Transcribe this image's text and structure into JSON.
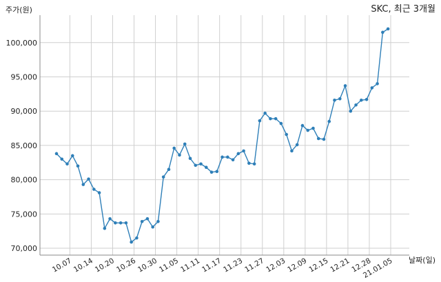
{
  "chart_data": {
    "type": "line",
    "title": "SKC, 최근 3개월",
    "xlabel": "날짜(일)",
    "ylabel": "주가(원)",
    "ylim": [
      69000,
      104000
    ],
    "y_ticks": [
      70000,
      75000,
      80000,
      85000,
      90000,
      95000,
      100000
    ],
    "y_tick_labels": [
      "70,000",
      "75,000",
      "80,000",
      "85,000",
      "90,000",
      "95,000",
      "100,000"
    ],
    "x_ticks": [
      {
        "label": "10.07",
        "index": 2.5
      },
      {
        "label": "10.14",
        "index": 6.5
      },
      {
        "label": "10.20",
        "index": 10.5
      },
      {
        "label": "10.26",
        "index": 14.5
      },
      {
        "label": "10.30",
        "index": 18.5
      },
      {
        "label": "11.05",
        "index": 22.5
      },
      {
        "label": "11.11",
        "index": 26.5
      },
      {
        "label": "11.17",
        "index": 30.5
      },
      {
        "label": "11.23",
        "index": 34.5
      },
      {
        "label": "11.27",
        "index": 38.5
      },
      {
        "label": "12.03",
        "index": 42.5
      },
      {
        "label": "12.09",
        "index": 46.5
      },
      {
        "label": "12.15",
        "index": 50.5
      },
      {
        "label": "12.21",
        "index": 54.5
      },
      {
        "label": "12.28",
        "index": 58.5
      },
      {
        "label": "21.01.05",
        "index": 62.5
      }
    ],
    "grid": true,
    "line_color": "#2e7fb8",
    "series": [
      {
        "values": [
          83800,
          83000,
          82300,
          83500,
          82000,
          79300,
          80100,
          78600,
          78100,
          72900,
          74300,
          73700,
          73700,
          73700,
          70900,
          71500,
          73900,
          74300,
          73100,
          73900,
          80400,
          81500,
          84600,
          83600,
          85200,
          83100,
          82100,
          82300,
          81800,
          81100,
          81200,
          83300,
          83300,
          82900,
          83800,
          84200,
          82400,
          82300,
          88600,
          89700,
          88900,
          88900,
          88200,
          86600,
          84200,
          85100,
          87900,
          87200,
          87500,
          86000,
          85900,
          88500,
          91600,
          91800,
          93700,
          90000,
          90900,
          91600,
          91700,
          93400,
          94000,
          101500,
          102000
        ]
      }
    ]
  }
}
